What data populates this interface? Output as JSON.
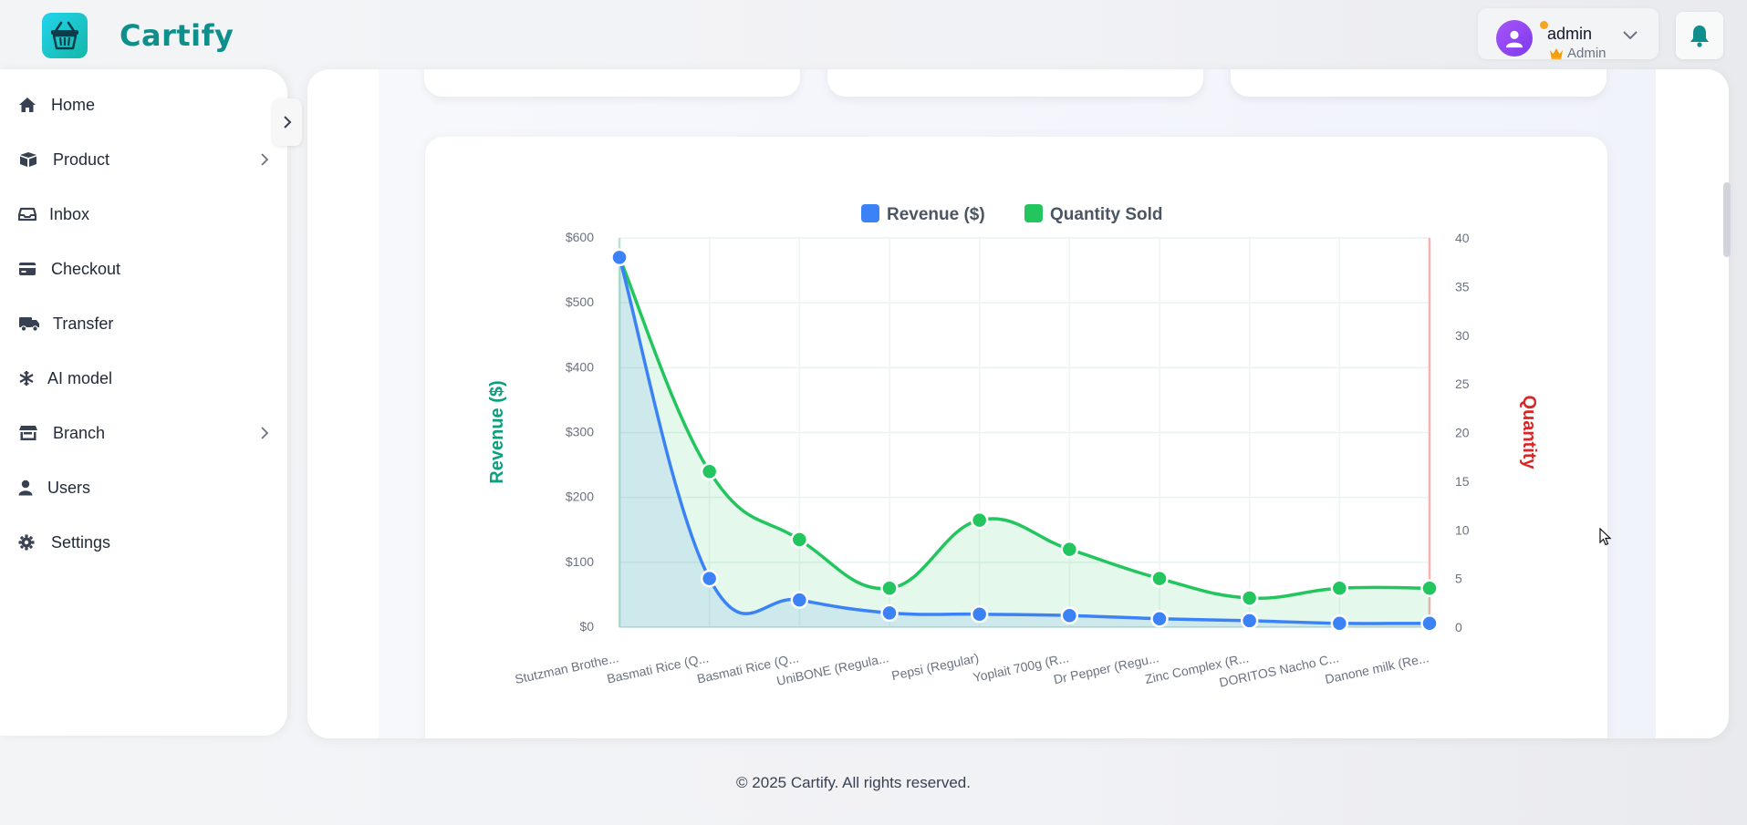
{
  "header": {
    "brand": "Cartify",
    "user": {
      "name": "admin",
      "role": "Admin"
    }
  },
  "sidebar": {
    "items": [
      {
        "label": "Home",
        "icon": "home-icon",
        "has_submenu": false
      },
      {
        "label": "Product",
        "icon": "box-icon",
        "has_submenu": true
      },
      {
        "label": "Inbox",
        "icon": "inbox-icon",
        "has_submenu": false
      },
      {
        "label": "Checkout",
        "icon": "credit-card-icon",
        "has_submenu": false
      },
      {
        "label": "Transfer",
        "icon": "truck-icon",
        "has_submenu": false
      },
      {
        "label": "AI model",
        "icon": "snowflake-icon",
        "has_submenu": false
      },
      {
        "label": "Branch",
        "icon": "store-icon",
        "has_submenu": true
      },
      {
        "label": "Users",
        "icon": "user-icon",
        "has_submenu": false
      },
      {
        "label": "Settings",
        "icon": "gear-icon",
        "has_submenu": false
      }
    ]
  },
  "footer": {
    "text": "© 2025 Cartify. All rights reserved."
  },
  "colors": {
    "brand": "#0e8f8b",
    "revenue": "#3b82f6",
    "quantity": "#22c55e",
    "revenue_axis": "#0e9f7e",
    "quantity_axis": "#dc2626"
  },
  "chart_data": {
    "type": "line",
    "categories": [
      "Stutzman Brothe...",
      "Basmati Rice (Q...",
      "Basmati Rice (Q...",
      "UniBONE (Regula...",
      "Pepsi (Regular)",
      "Yoplait 700g (R...",
      "Dr Pepper (Regu...",
      "Zinc Complex (R...",
      "DORITOS Nacho C...",
      "Danone milk (Re..."
    ],
    "series": [
      {
        "name": "Revenue ($)",
        "axis": "left",
        "values": [
          570,
          75,
          42,
          22,
          20,
          18,
          13,
          10,
          6,
          6
        ]
      },
      {
        "name": "Quantity Sold",
        "axis": "right",
        "values": [
          38,
          16,
          9,
          4,
          11,
          8,
          5,
          3,
          4,
          4
        ]
      }
    ],
    "ylabel": "Revenue ($)",
    "y2label": "Quantity",
    "ylim": [
      0,
      600
    ],
    "y_ticks": [
      "$0",
      "$100",
      "$200",
      "$300",
      "$400",
      "$500",
      "$600"
    ],
    "y_tick_values": [
      0,
      100,
      200,
      300,
      400,
      500,
      600
    ],
    "y2lim": [
      0,
      40
    ],
    "y2_ticks": [
      "0",
      "5",
      "10",
      "15",
      "20",
      "25",
      "30",
      "35",
      "40"
    ],
    "y2_tick_values": [
      0,
      5,
      10,
      15,
      20,
      25,
      30,
      35,
      40
    ],
    "legend": "top",
    "grid": true
  }
}
